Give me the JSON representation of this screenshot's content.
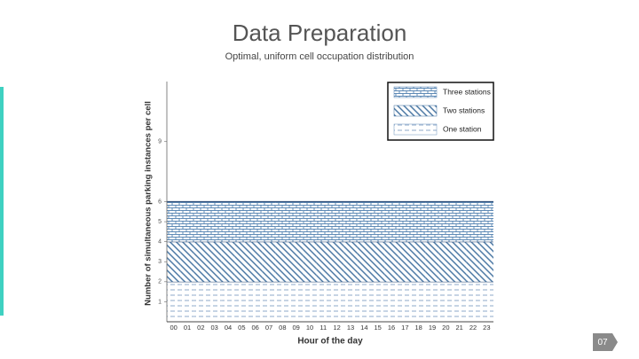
{
  "slide": {
    "title": "Data Preparation",
    "subtitle": "Optimal, uniform cell occupation distribution",
    "page_number": "07"
  },
  "chart_data": {
    "type": "bar",
    "stacked": true,
    "x_label": "Hour of the day",
    "y_label": "Number of simultaneous parking instances per cell",
    "categories": [
      "00",
      "01",
      "02",
      "03",
      "04",
      "05",
      "06",
      "07",
      "08",
      "09",
      "10",
      "11",
      "12",
      "13",
      "14",
      "15",
      "16",
      "17",
      "18",
      "19",
      "20",
      "21",
      "22",
      "23"
    ],
    "series": [
      {
        "name": "One station",
        "color": "#6f93bd",
        "values": [
          2,
          2,
          2,
          2,
          2,
          2,
          2,
          2,
          2,
          2,
          2,
          2,
          2,
          2,
          2,
          2,
          2,
          2,
          2,
          2,
          2,
          2,
          2,
          2
        ]
      },
      {
        "name": "Two stations",
        "color": "#3f6f9e",
        "values": [
          2,
          2,
          2,
          2,
          2,
          2,
          2,
          2,
          2,
          2,
          2,
          2,
          2,
          2,
          2,
          2,
          2,
          2,
          2,
          2,
          2,
          2,
          2,
          2
        ]
      },
      {
        "name": "Three stations",
        "color": "#4f7faf",
        "values": [
          2,
          2,
          2,
          2,
          2,
          2,
          2,
          2,
          2,
          2,
          2,
          2,
          2,
          2,
          2,
          2,
          2,
          2,
          2,
          2,
          2,
          2,
          2,
          2
        ]
      }
    ],
    "ylim": [
      0,
      12
    ],
    "yticks": [
      1,
      2,
      3,
      4,
      5,
      6,
      9
    ],
    "grid": false,
    "legend": "top-right"
  }
}
